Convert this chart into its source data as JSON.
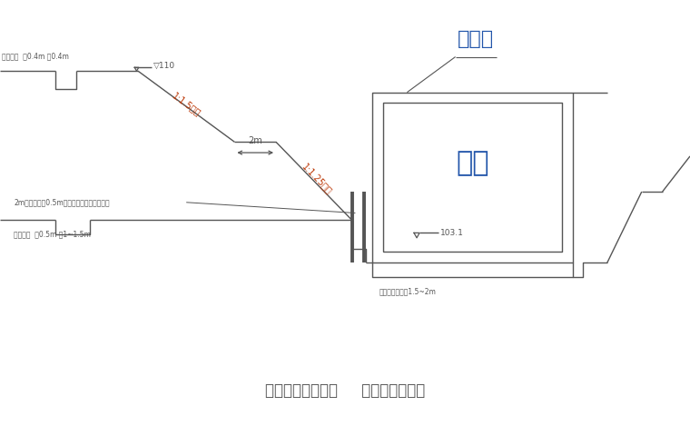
{
  "bg_color": "#ffffff",
  "line_color": "#555555",
  "slope_label_color": "#bb3300",
  "blue_color": "#2255aa",
  "title": "需要时增加松木桩     边坡加固示意图",
  "title_fontsize": 12,
  "label_yinshuiqu": "引水渠",
  "label_jikeng": "基坑",
  "label_103": "103.1",
  "label_slope1": "1:1.5坡坡",
  "label_slope2": "1:1.25坡坡",
  "label_drain_top": "排水明沟  深0.4m 宽0.4m",
  "label_drain_bot": "排水明沟  深0.5m 宽1~1.5m",
  "label_pile": "2m长木桩间距0.5m插入坡坡上用竹篾篮围挡",
  "label_width": "2m",
  "label_water_top": "▽110",
  "label_base": "桩手脚接设宽度1.5~2m",
  "xlim": [
    0,
    100
  ],
  "ylim": [
    0,
    60
  ]
}
